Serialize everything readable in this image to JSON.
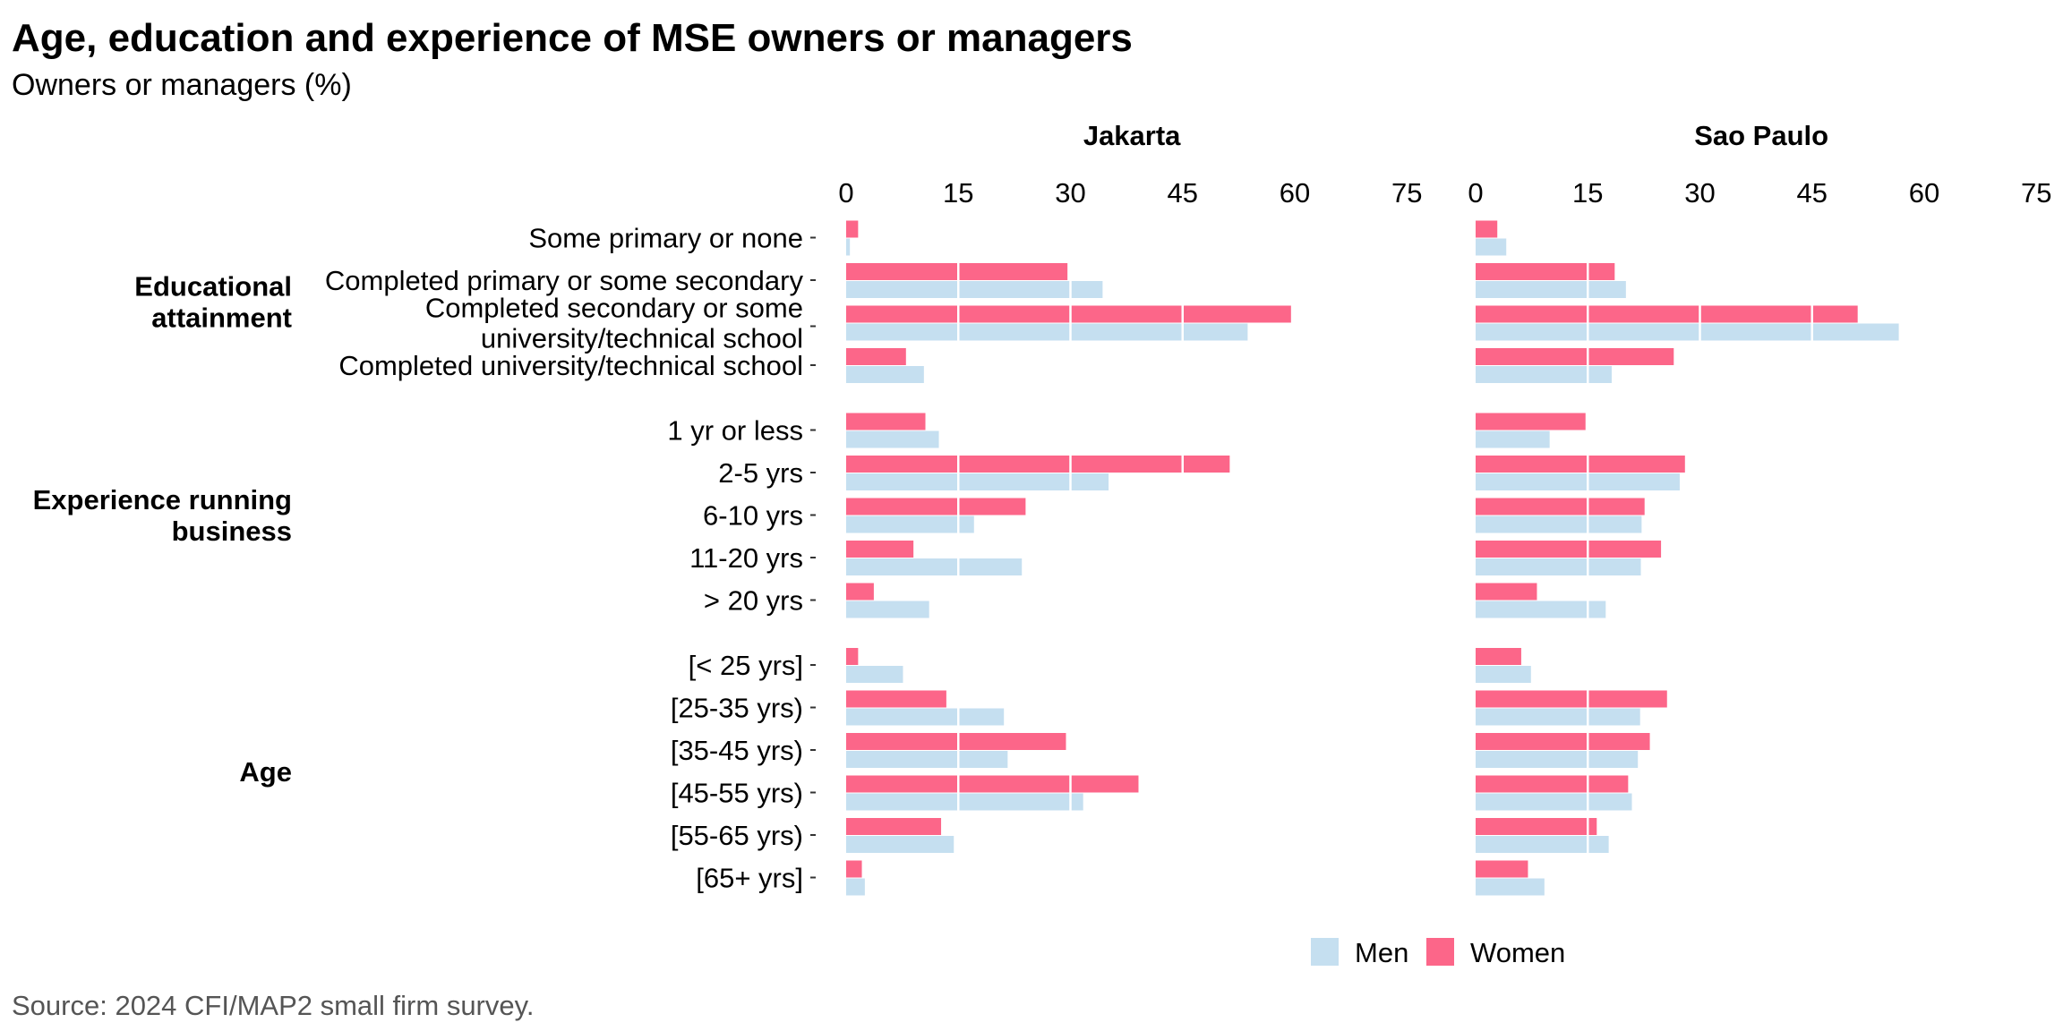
{
  "header": {
    "title": "Age, education and experience of MSE owners or managers",
    "subtitle": "Owners or managers (%)"
  },
  "footer": {
    "source": "Source: 2024 CFI/MAP2 small firm survey."
  },
  "chart_data": {
    "type": "bar",
    "orientation": "horizontal",
    "title": "Age, education and experience of MSE owners or managers",
    "subtitle": "Owners or managers (%)",
    "xlim": [
      0,
      75
    ],
    "xticks": [
      0,
      15,
      30,
      45,
      60,
      75
    ],
    "grid": "vertical white gridlines over bars",
    "legend": {
      "position": "bottom",
      "entries": [
        {
          "name": "Men",
          "color": "#c5dff0"
        },
        {
          "name": "Women",
          "color": "#fc6689"
        }
      ]
    },
    "groups": [
      {
        "label": "Educational attainment",
        "lines": [
          "Educational",
          "attainment"
        ],
        "categories": [
          {
            "label": "Some primary or none",
            "lines": [
              "Some primary or none"
            ]
          },
          {
            "label": "Completed primary or some secondary",
            "lines": [
              "Completed primary or some secondary"
            ]
          },
          {
            "label": "Completed secondary or some university/technical school",
            "lines": [
              "Completed secondary or some",
              "university/technical school"
            ]
          },
          {
            "label": "Completed university/technical school",
            "lines": [
              "Completed university/technical school"
            ]
          }
        ]
      },
      {
        "label": "Experience running business",
        "lines": [
          "Experience running",
          "business"
        ],
        "categories": [
          {
            "label": "1 yr or less",
            "lines": [
              "1 yr or less"
            ]
          },
          {
            "label": "2-5 yrs",
            "lines": [
              "2-5 yrs"
            ]
          },
          {
            "label": "6-10 yrs",
            "lines": [
              "6-10 yrs"
            ]
          },
          {
            "label": "11-20 yrs",
            "lines": [
              "11-20 yrs"
            ]
          },
          {
            "label": "> 20 yrs",
            "lines": [
              "> 20 yrs"
            ]
          }
        ]
      },
      {
        "label": "Age",
        "lines": [
          "Age"
        ],
        "categories": [
          {
            "label": "[< 25 yrs]",
            "lines": [
              "[< 25 yrs]"
            ]
          },
          {
            "label": "[25-35 yrs)",
            "lines": [
              "[25-35 yrs)"
            ]
          },
          {
            "label": "[35-45 yrs)",
            "lines": [
              "[35-45 yrs)"
            ]
          },
          {
            "label": "[45-55 yrs)",
            "lines": [
              "[45-55 yrs)"
            ]
          },
          {
            "label": "[55-65 yrs)",
            "lines": [
              "[55-65 yrs)"
            ]
          },
          {
            "label": "[65+ yrs]",
            "lines": [
              "[65+ yrs]"
            ]
          }
        ]
      }
    ],
    "panels": [
      {
        "name": "Jakarta",
        "women": [
          1.6,
          29.6,
          59.5,
          8.0,
          10.6,
          51.3,
          24.0,
          9.0,
          3.7,
          1.6,
          13.4,
          29.4,
          39.1,
          12.7,
          2.1
        ],
        "men": [
          0.5,
          34.3,
          53.7,
          10.4,
          12.4,
          35.1,
          17.1,
          23.5,
          11.1,
          7.6,
          21.1,
          21.6,
          31.7,
          14.4,
          2.5
        ]
      },
      {
        "name": "Sao Paulo",
        "women": [
          2.9,
          18.6,
          51.1,
          26.5,
          14.7,
          28.0,
          22.6,
          24.8,
          8.2,
          6.1,
          25.6,
          23.3,
          20.4,
          16.2,
          7.0
        ],
        "men": [
          4.1,
          20.1,
          56.6,
          18.2,
          9.9,
          27.3,
          22.2,
          22.1,
          17.4,
          7.4,
          22.0,
          21.7,
          20.9,
          17.8,
          9.2
        ]
      }
    ]
  }
}
